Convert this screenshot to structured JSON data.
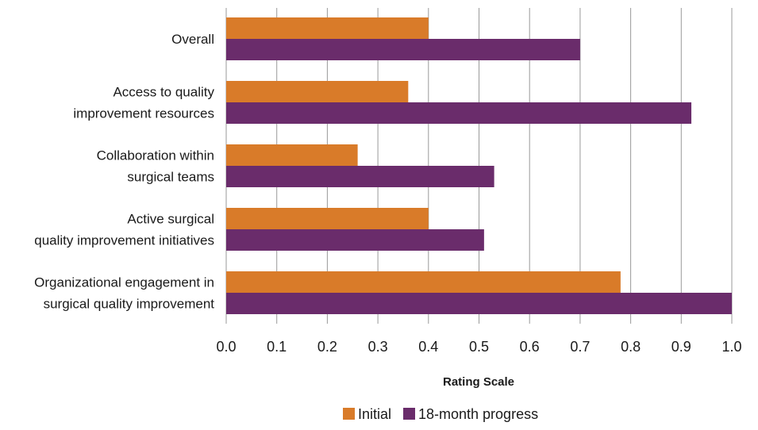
{
  "chart_data": {
    "type": "bar",
    "orientation": "horizontal",
    "categories": [
      [
        "Overall"
      ],
      [
        "Access to quality",
        "improvement resources"
      ],
      [
        "Collaboration within",
        "surgical teams"
      ],
      [
        "Active surgical",
        "quality improvement initiatives"
      ],
      [
        "Organizational engagement in",
        "surgical quality improvement"
      ]
    ],
    "series": [
      {
        "name": "Initial",
        "color": "#d97b29",
        "values": [
          0.4,
          0.36,
          0.26,
          0.4,
          0.78
        ]
      },
      {
        "name": "18-month progress",
        "color": "#6a2c6b",
        "values": [
          0.7,
          0.92,
          0.53,
          0.51,
          1.0
        ]
      }
    ],
    "xlabel": "Rating Scale",
    "xlim": [
      0,
      1.0
    ],
    "ticks": [
      "0.0",
      "0.1",
      "0.2",
      "0.3",
      "0.4",
      "0.5",
      "0.6",
      "0.7",
      "0.8",
      "0.9",
      "1.0"
    ],
    "grid": true,
    "legend_position": "bottom"
  }
}
